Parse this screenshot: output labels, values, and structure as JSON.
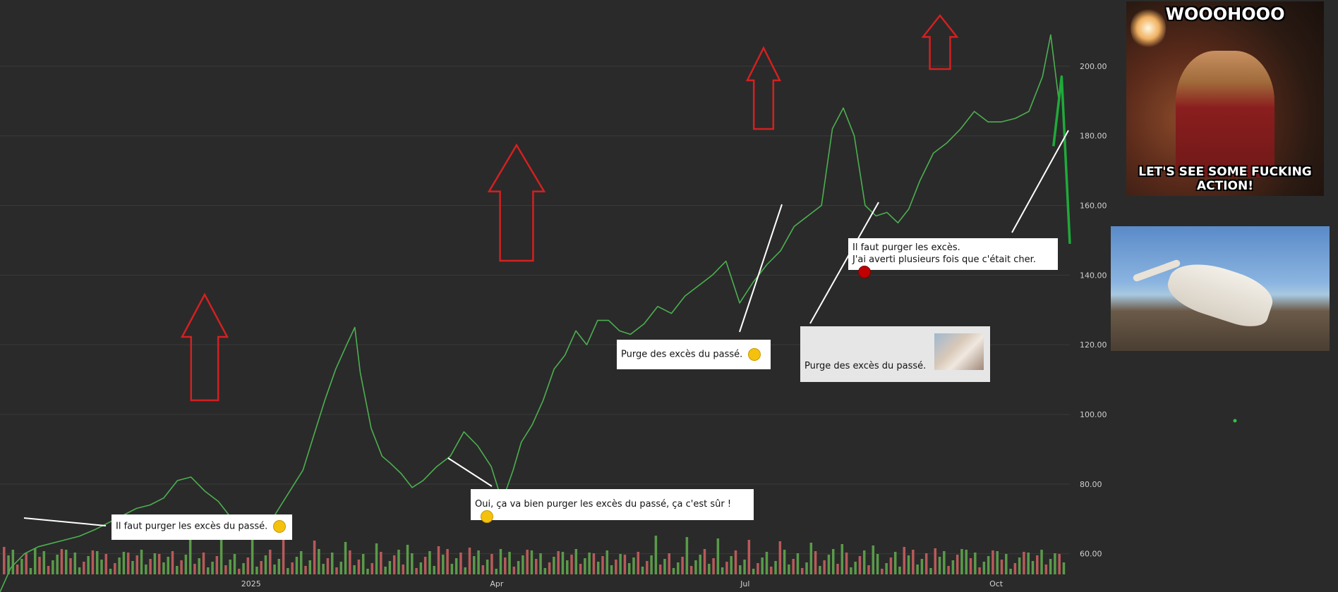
{
  "chart_data": {
    "type": "line",
    "y_axis": {
      "ticks": [
        "60.00",
        "80.00",
        "100.00",
        "120.00",
        "140.00",
        "160.00",
        "180.00",
        "200.00"
      ],
      "position": "right",
      "grid": true
    },
    "x_axis": {
      "labels": [
        {
          "date": "2025-01-01",
          "label": "2025"
        },
        {
          "date": "2025-04-01",
          "label": "Apr"
        },
        {
          "date": "2025-07-01",
          "label": "Jul"
        },
        {
          "date": "2025-10-01",
          "label": "Oct"
        }
      ]
    },
    "xlim": [
      "2024-10-01",
      "2025-10-28"
    ],
    "ylim": [
      49,
      219
    ],
    "series": [
      {
        "color": "#4caf50",
        "type": "line",
        "x": [
          "2024-10-01",
          "2024-10-05",
          "2024-10-10",
          "2024-10-15",
          "2024-10-20",
          "2024-10-25",
          "2024-10-30",
          "2024-11-05",
          "2024-11-10",
          "2024-11-15",
          "2024-11-20",
          "2024-11-25",
          "2024-11-30",
          "2024-12-05",
          "2024-12-10",
          "2024-12-15",
          "2024-12-20",
          "2024-12-25",
          "2024-12-30",
          "2025-01-04",
          "2025-01-08",
          "2025-01-12",
          "2025-01-16",
          "2025-01-20",
          "2025-01-24",
          "2025-01-28",
          "2025-02-01",
          "2025-02-05",
          "2025-02-08",
          "2025-02-10",
          "2025-02-14",
          "2025-02-18",
          "2025-02-21",
          "2025-02-25",
          "2025-03-01",
          "2025-03-05",
          "2025-03-10",
          "2025-03-15",
          "2025-03-20",
          "2025-03-25",
          "2025-03-30",
          "2025-04-03",
          "2025-04-07",
          "2025-04-10",
          "2025-04-14",
          "2025-04-18",
          "2025-04-22",
          "2025-04-26",
          "2025-04-30",
          "2025-05-04",
          "2025-05-08",
          "2025-05-12",
          "2025-05-16",
          "2025-05-20",
          "2025-05-25",
          "2025-05-30",
          "2025-06-04",
          "2025-06-09",
          "2025-06-14",
          "2025-06-19",
          "2025-06-24",
          "2025-06-29",
          "2025-07-04",
          "2025-07-09",
          "2025-07-14",
          "2025-07-19",
          "2025-07-24",
          "2025-07-29",
          "2025-08-02",
          "2025-08-06",
          "2025-08-10",
          "2025-08-14",
          "2025-08-18",
          "2025-08-22",
          "2025-08-26",
          "2025-08-30",
          "2025-09-03",
          "2025-09-08",
          "2025-09-13",
          "2025-09-18",
          "2025-09-23",
          "2025-09-28",
          "2025-10-03",
          "2025-10-08",
          "2025-10-13",
          "2025-10-18",
          "2025-10-21",
          "2025-10-24"
        ],
        "y": [
          49,
          56,
          60,
          62,
          63,
          64,
          65,
          67,
          69,
          71,
          73,
          74,
          76,
          81,
          82,
          78,
          75,
          70,
          66,
          65,
          69,
          74,
          79,
          84,
          94,
          104,
          113,
          120,
          125,
          112,
          96,
          88,
          86,
          83,
          79,
          81,
          85,
          88,
          95,
          91,
          85,
          75,
          84,
          92,
          97,
          104,
          113,
          117,
          124,
          120,
          127,
          127,
          124,
          123,
          126,
          131,
          129,
          134,
          137,
          140,
          144,
          132,
          138,
          143,
          147,
          154,
          157,
          160,
          182,
          188,
          180,
          160,
          157,
          158,
          155,
          159,
          167,
          175,
          178,
          182,
          187,
          184,
          184,
          185,
          187,
          197,
          209,
          190
        ]
      },
      {
        "color": "#1faa3a",
        "type": "projection",
        "x": [
          "2025-10-22",
          "2025-10-25",
          "2025-10-28"
        ],
        "y": [
          177,
          197,
          149
        ]
      }
    ],
    "volume": {
      "colors": [
        "#5a9a4a",
        "#b85a5a"
      ]
    }
  },
  "annotations": [
    {
      "text": "Il faut purger les excès du passé.",
      "emoji": "smiling-face-icon"
    },
    {
      "text": "Oui, ça va bien purger les excès du passé, ça c'est sûr !",
      "emoji": "heart-eyes-face-icon"
    },
    {
      "text": "Purge des excès du passé.",
      "emoji": "smiling-face-icon"
    },
    {
      "text": "Purge des excès du passé.",
      "emoji": "portrait-photo"
    },
    {
      "lines": [
        "Il faut purger les excès.",
        "J'ai averti plusieurs fois que c'était cher."
      ],
      "emoji": "red-circle-icon"
    }
  ],
  "images": {
    "meme": {
      "top_text": "WOOOHOOO",
      "bottom_text": "LET'S SEE SOME FUCKING ACTION!"
    },
    "dog": {
      "subject": "dog digging head in sand"
    }
  },
  "colors": {
    "background": "#2a2a2a",
    "up_arrow": "#d42020",
    "line": "#4caf50",
    "grid": "#3a3a3a"
  }
}
